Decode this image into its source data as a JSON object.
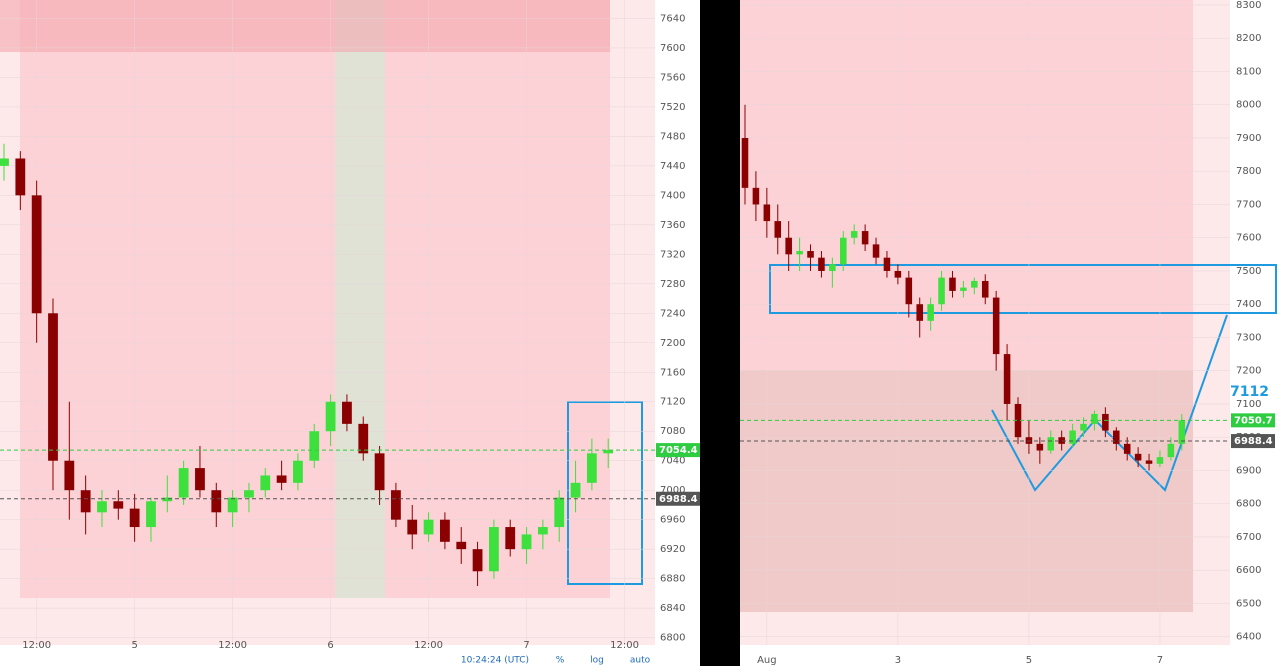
{
  "chart_data": [
    {
      "type": "candlestick",
      "categories": [
        null,
        null,
        "12:00",
        null,
        null,
        null,
        null,
        null,
        "5",
        null,
        null,
        null,
        null,
        null,
        "12:00",
        null,
        null,
        null,
        null,
        null,
        "6",
        null,
        null,
        null,
        null,
        null,
        "12:00",
        null,
        null,
        null,
        null,
        null,
        "7",
        null,
        null,
        null,
        null,
        null,
        "12:00"
      ],
      "open": [
        7440,
        7450,
        7400,
        7240,
        7040,
        7000,
        6970,
        6985,
        6975,
        6950,
        6985,
        6990,
        7030,
        7000,
        6970,
        6990,
        7000,
        7020,
        7010,
        7040,
        7080,
        7120,
        7090,
        7050,
        7000,
        6960,
        6940,
        6960,
        6930,
        6920,
        6890,
        6950,
        6920,
        6940,
        6950,
        6990,
        7010,
        7050,
        null
      ],
      "high": [
        7470,
        7460,
        7420,
        7260,
        7120,
        7020,
        7000,
        7000,
        6995,
        6990,
        7020,
        7040,
        7060,
        7010,
        7000,
        7010,
        7030,
        7040,
        7050,
        7090,
        7130,
        7130,
        7100,
        7060,
        7010,
        6980,
        6970,
        6970,
        6950,
        6930,
        6960,
        6960,
        6950,
        6960,
        7000,
        7040,
        7070,
        7070,
        null
      ],
      "low": [
        7420,
        7380,
        7200,
        7000,
        6960,
        6940,
        6950,
        6960,
        6930,
        6930,
        6970,
        6980,
        6990,
        6950,
        6950,
        6970,
        6990,
        7000,
        7000,
        7030,
        7060,
        7080,
        7040,
        6980,
        6950,
        6920,
        6930,
        6920,
        6900,
        6870,
        6880,
        6910,
        6900,
        6920,
        6930,
        6970,
        7000,
        7030,
        null
      ],
      "close": [
        7450,
        7400,
        7240,
        7040,
        7000,
        6970,
        6985,
        6975,
        6950,
        6985,
        6990,
        7030,
        7000,
        6970,
        6990,
        7000,
        7020,
        7010,
        7040,
        7080,
        7120,
        7090,
        7050,
        7000,
        6960,
        6940,
        6960,
        6930,
        6920,
        6890,
        6950,
        6920,
        6940,
        6950,
        6990,
        7010,
        7050,
        7054.4,
        null
      ],
      "up_color": "#3ee03e",
      "down_color": "#8b0000",
      "ylim": [
        6790,
        7665
      ],
      "yticks": [
        6800,
        6840,
        6880,
        6920,
        6960,
        7000,
        7040,
        7080,
        7120,
        7160,
        7200,
        7240,
        7280,
        7320,
        7360,
        7400,
        7440,
        7480,
        7520,
        7560,
        7600,
        7640
      ],
      "price_lines": [
        7054.4,
        6988.4
      ],
      "price_line_colors": [
        "#2ecc40",
        "#555555"
      ],
      "grid": true
    },
    {
      "type": "candlestick",
      "categories": [
        null,
        null,
        "Aug",
        null,
        null,
        null,
        null,
        null,
        null,
        null,
        null,
        null,
        null,
        null,
        "3",
        null,
        null,
        null,
        null,
        null,
        null,
        null,
        null,
        null,
        null,
        null,
        "5",
        null,
        null,
        null,
        null,
        null,
        null,
        null,
        null,
        null,
        null,
        null,
        "7",
        null,
        null
      ],
      "open": [
        7900,
        7750,
        7700,
        7650,
        7600,
        7550,
        7560,
        7540,
        7500,
        7520,
        7600,
        7620,
        7580,
        7540,
        7500,
        7480,
        7400,
        7350,
        7400,
        7480,
        7440,
        7450,
        7470,
        7420,
        7250,
        7100,
        7000,
        6980,
        6960,
        7000,
        6980,
        7020,
        7040,
        7070,
        7020,
        6980,
        6950,
        6930,
        6920,
        6940,
        6980
      ],
      "high": [
        8000,
        7800,
        7750,
        7700,
        7650,
        7600,
        7580,
        7560,
        7540,
        7620,
        7640,
        7640,
        7600,
        7560,
        7520,
        7500,
        7420,
        7420,
        7500,
        7500,
        7470,
        7480,
        7490,
        7440,
        7280,
        7120,
        7050,
        7000,
        7020,
        7020,
        7040,
        7060,
        7080,
        7090,
        7030,
        7000,
        6970,
        6950,
        6960,
        7000,
        7070
      ],
      "low": [
        7700,
        7650,
        7600,
        7550,
        7500,
        7500,
        7500,
        7480,
        7450,
        7500,
        7580,
        7560,
        7520,
        7480,
        7460,
        7360,
        7300,
        7320,
        7380,
        7420,
        7420,
        7430,
        7400,
        7200,
        7050,
        6980,
        6950,
        6920,
        6950,
        6960,
        6970,
        7000,
        7020,
        7000,
        6960,
        6930,
        6910,
        6900,
        6910,
        6930,
        6960
      ],
      "close": [
        7750,
        7700,
        7650,
        7600,
        7550,
        7560,
        7540,
        7500,
        7520,
        7600,
        7620,
        7580,
        7540,
        7500,
        7480,
        7400,
        7350,
        7400,
        7480,
        7440,
        7450,
        7470,
        7420,
        7250,
        7100,
        7000,
        6980,
        6960,
        7000,
        6980,
        7020,
        7040,
        7070,
        7020,
        6980,
        6950,
        6930,
        6920,
        6940,
        6980,
        7050.7
      ],
      "up_color": "#3ee03e",
      "down_color": "#8b0000",
      "ylim": [
        6375,
        8315
      ],
      "yticks": [
        6400,
        6500,
        6600,
        6700,
        6800,
        6900,
        7000,
        7100,
        7200,
        7300,
        7400,
        7500,
        7600,
        7700,
        7800,
        7900,
        8000,
        8100,
        8200,
        8300
      ],
      "price_lines": [
        7050.7,
        6988.4
      ],
      "price_line_colors": [
        "#2ecc40",
        "#555555"
      ],
      "annotations": [
        "7112"
      ],
      "grid": true
    }
  ],
  "toolbar": {
    "time": "10:24:24 (UTC)",
    "percent": "%",
    "log": "log",
    "auto": "auto"
  }
}
